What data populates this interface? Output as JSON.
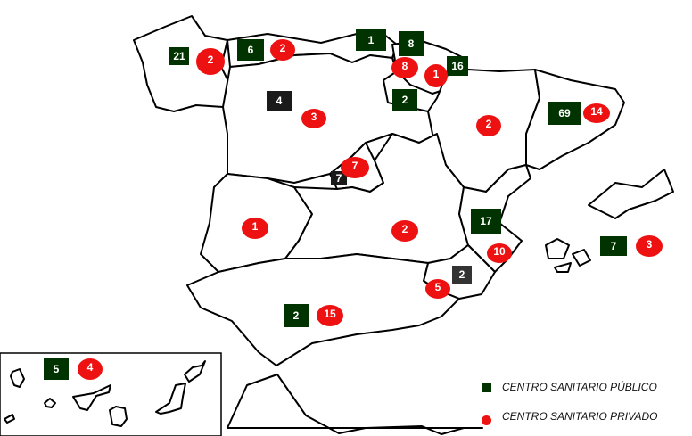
{
  "colors": {
    "public": "#003300",
    "public_dark": "#1a1a1a",
    "public_gray": "#333333",
    "private": "#ee1111"
  },
  "legend": {
    "public_label": "CENTRO SANITARIO PÚBLICO",
    "private_label": "CENTRO SANITARIO PRIVADO"
  },
  "markers": {
    "public": [
      {
        "region": "Galicia",
        "value": "21"
      },
      {
        "region": "Asturias",
        "value": "6"
      },
      {
        "region": "Cantabria",
        "value": "1"
      },
      {
        "region": "País Vasco",
        "value": "8"
      },
      {
        "region": "Navarra",
        "value": "16"
      },
      {
        "region": "La Rioja",
        "value": "2"
      },
      {
        "region": "Castilla y León",
        "value": "4",
        "tone": "dark"
      },
      {
        "region": "Cataluña",
        "value": "69"
      },
      {
        "region": "Madrid",
        "value": "7",
        "tone": "dark"
      },
      {
        "region": "Comunidad Valenciana",
        "value": "17"
      },
      {
        "region": "Baleares",
        "value": "7"
      },
      {
        "region": "Murcia",
        "value": "2",
        "tone": "gray"
      },
      {
        "region": "Andalucía",
        "value": "2"
      },
      {
        "region": "Canarias",
        "value": "5"
      }
    ],
    "private": [
      {
        "region": "Galicia",
        "value": "2"
      },
      {
        "region": "Asturias",
        "value": "2"
      },
      {
        "region": "País Vasco",
        "value": "8"
      },
      {
        "region": "Navarra",
        "value": "1"
      },
      {
        "region": "Castilla y León",
        "value": "3"
      },
      {
        "region": "Aragón",
        "value": "2"
      },
      {
        "region": "Cataluña",
        "value": "14"
      },
      {
        "region": "Madrid",
        "value": "7"
      },
      {
        "region": "Extremadura",
        "value": "1"
      },
      {
        "region": "Castilla-La Mancha",
        "value": "2"
      },
      {
        "region": "Comunidad Valenciana",
        "value": "10"
      },
      {
        "region": "Baleares",
        "value": "3"
      },
      {
        "region": "Murcia",
        "value": "5"
      },
      {
        "region": "Andalucía",
        "value": "15"
      },
      {
        "region": "Canarias",
        "value": "4"
      }
    ]
  }
}
